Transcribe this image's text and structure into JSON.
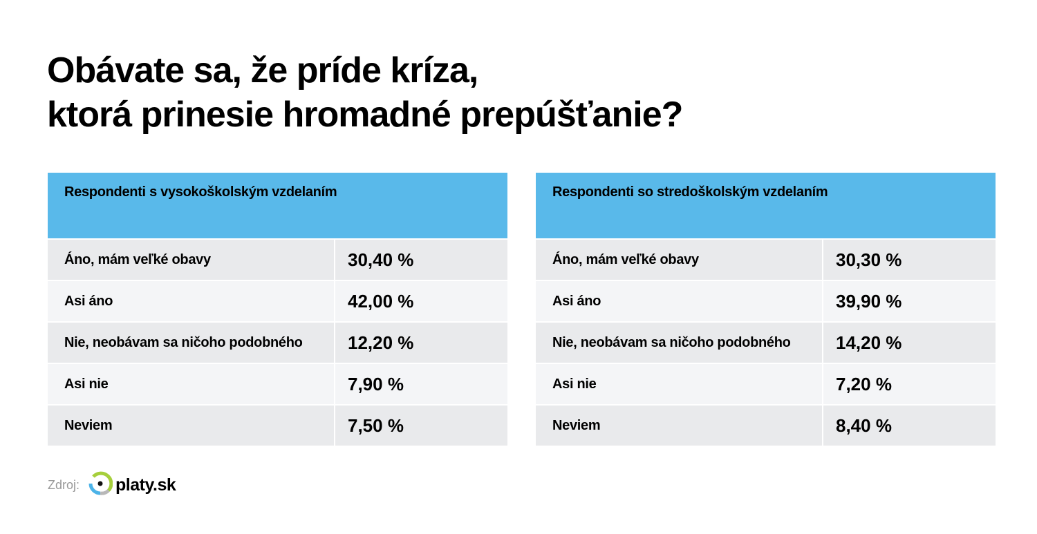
{
  "title": {
    "line1": "Obávate sa, že príde kríza,",
    "line2": "ktorá prinesie hromadné prepúšťanie?"
  },
  "tables": [
    {
      "header": "Respondenti s vysokoškolským vzdelaním",
      "rows": [
        {
          "label": "Áno, mám veľké obavy",
          "value": "30,40 %"
        },
        {
          "label": "Asi áno",
          "value": "42,00 %"
        },
        {
          "label": "Nie, neobávam sa ničoho podobného",
          "value": "12,20 %"
        },
        {
          "label": "Asi nie",
          "value": "7,90 %"
        },
        {
          "label": "Neviem",
          "value": "7,50 %"
        }
      ]
    },
    {
      "header": "Respondenti so stredoškolským vzdelaním",
      "rows": [
        {
          "label": "Áno, mám veľké obavy",
          "value": "30,30 %"
        },
        {
          "label": "Asi áno",
          "value": "39,90 %"
        },
        {
          "label": "Nie, neobávam sa ničoho podobného",
          "value": "14,20 %"
        },
        {
          "label": "Asi nie",
          "value": "7,20 %"
        },
        {
          "label": "Neviem",
          "value": "8,40 %"
        }
      ]
    }
  ],
  "source": {
    "label": "Zdroj:",
    "brand": "platy.sk"
  },
  "colors": {
    "header": "#59b9ea",
    "row_dark": "#e9eaec",
    "row_light": "#f4f5f7",
    "logo_green": "#a6cf3c",
    "logo_blue": "#4cb3e8"
  }
}
